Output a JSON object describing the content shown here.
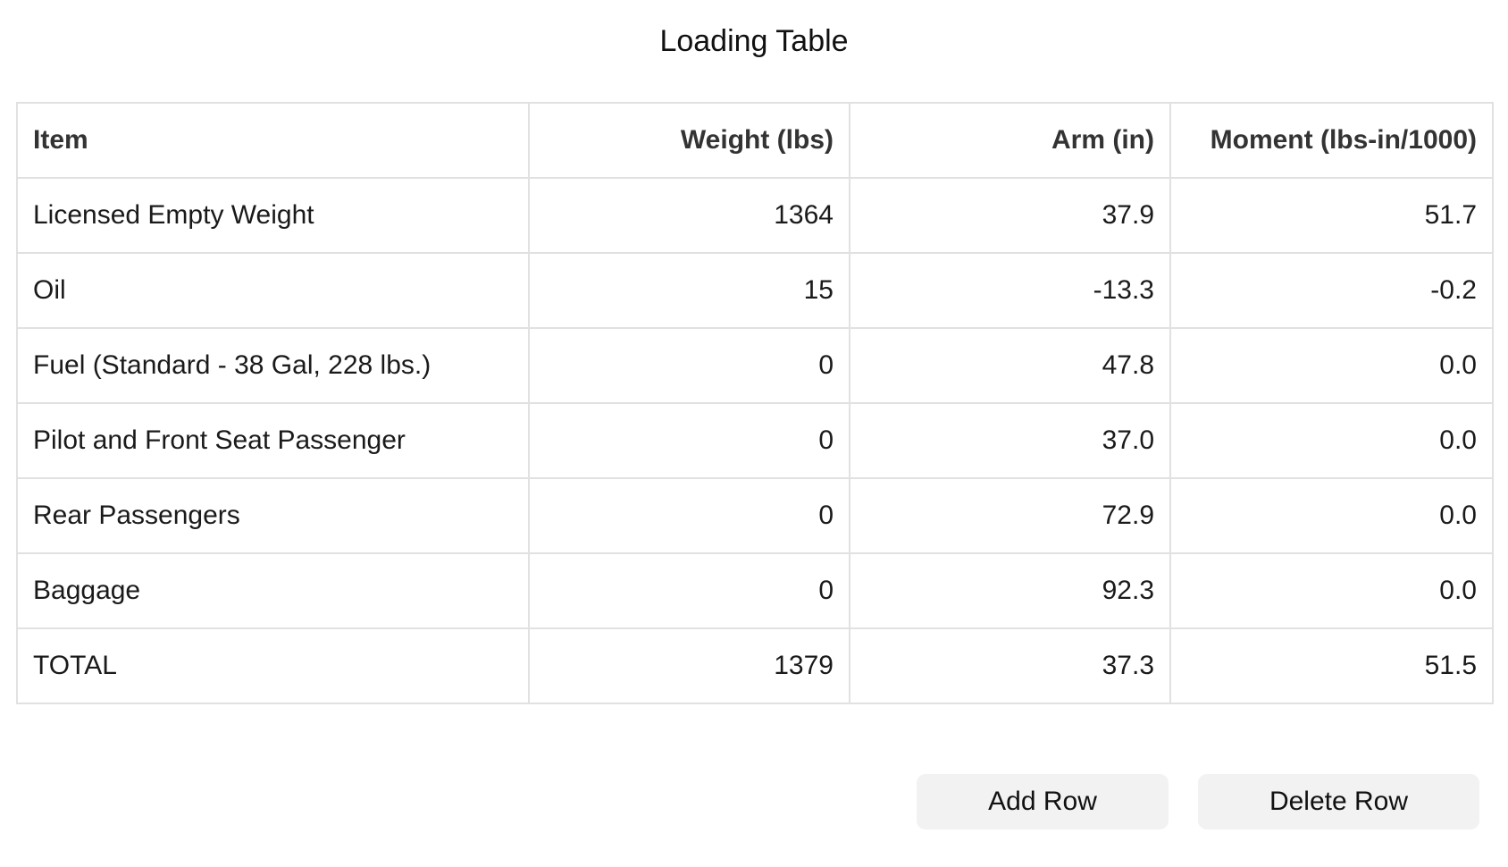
{
  "title": "Loading Table",
  "table": {
    "headers": [
      "Item",
      "Weight (lbs)",
      "Arm (in)",
      "Moment (lbs-in/1000)"
    ],
    "rows": [
      [
        "Licensed Empty Weight",
        "1364",
        "37.9",
        "51.7"
      ],
      [
        "Oil",
        "15",
        "-13.3",
        "-0.2"
      ],
      [
        "Fuel (Standard - 38 Gal, 228 lbs.)",
        "0",
        "47.8",
        "0.0"
      ],
      [
        "Pilot and Front Seat Passenger",
        "0",
        "37.0",
        "0.0"
      ],
      [
        "Rear Passengers",
        "0",
        "72.9",
        "0.0"
      ],
      [
        "Baggage",
        "0",
        "92.3",
        "0.0"
      ],
      [
        "TOTAL",
        "1379",
        "37.3",
        "51.5"
      ]
    ]
  },
  "buttons": {
    "add_label": "Add Row",
    "delete_label": "Delete Row"
  },
  "colors": {
    "border": "#e1e1e1",
    "button_bg": "#f2f2f2",
    "header_text": "#333333"
  }
}
